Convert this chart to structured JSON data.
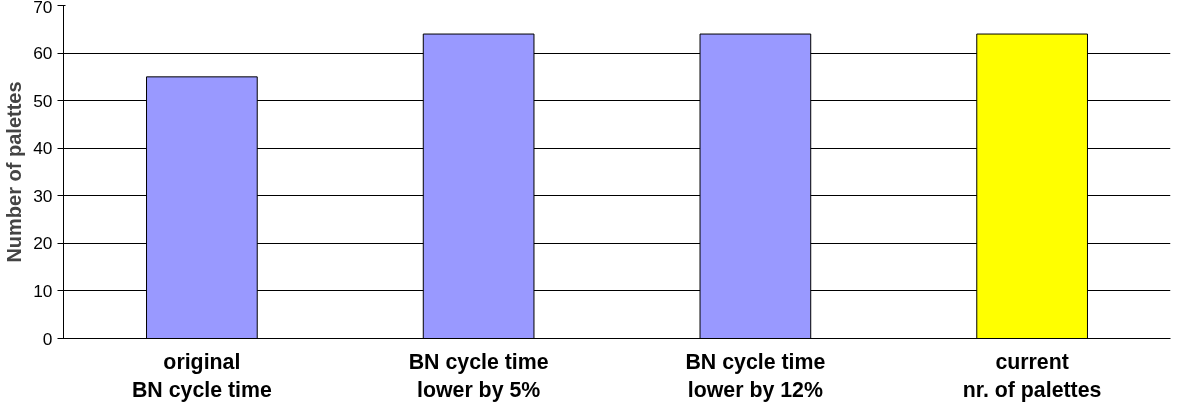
{
  "chart_data": {
    "type": "bar",
    "ylabel": "Number of palettes",
    "categories": [
      "original\nBN cycle time",
      "BN cycle time\nlower by 5%",
      "BN cycle time\nlower by 12%",
      "current\nnr. of palettes"
    ],
    "values": [
      55,
      64,
      64,
      64
    ],
    "colors": [
      "#9999ff",
      "#9999ff",
      "#9999ff",
      "#ffff00"
    ],
    "ylim": [
      0,
      70
    ],
    "yticks": [
      0,
      10,
      20,
      30,
      40,
      50,
      60,
      70
    ],
    "grid": "y"
  }
}
